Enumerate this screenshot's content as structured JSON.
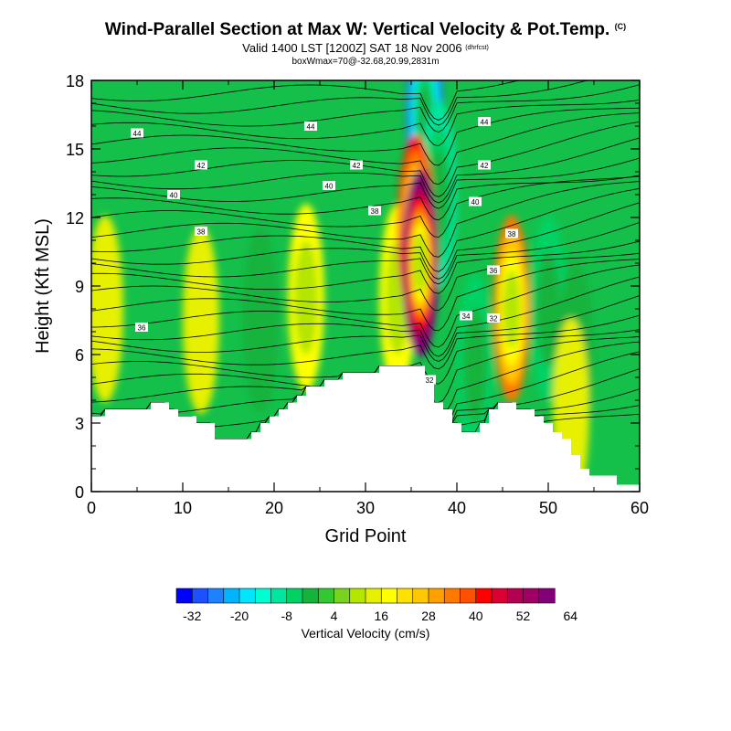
{
  "header": {
    "title": "Wind-Parallel Section at Max W: Vertical Velocity & Pot.Temp.",
    "title_sup": "(C)",
    "subtitle": "Valid 1400 LST [1200Z] SAT 18 Nov 2006",
    "subtitle_sup": "(dhrfcst)",
    "info": "boxWmax=70@-32.68,20.99,2831m"
  },
  "chart_data": {
    "type": "heatmap",
    "title": "Wind-Parallel Section at Max W: Vertical Velocity & Pot.Temp.",
    "xlabel": "Grid Point",
    "ylabel": "Height (Kft MSL)",
    "xlim": [
      0,
      60
    ],
    "ylim": [
      0,
      18
    ],
    "x_ticks": [
      "0",
      "10",
      "20",
      "30",
      "40",
      "50",
      "60"
    ],
    "y_ticks": [
      "0",
      "3",
      "6",
      "9",
      "12",
      "15",
      "18"
    ],
    "colorbar": {
      "label": "Vertical Velocity (cm/s)",
      "tick_labels": [
        "-32",
        "-20",
        "-8",
        "4",
        "16",
        "28",
        "40",
        "52",
        "64"
      ],
      "min": -36,
      "step": 4,
      "colors": [
        "#0000ff",
        "#1e50ff",
        "#1e82ff",
        "#00b4ff",
        "#00e6ff",
        "#00ffd0",
        "#00e6a0",
        "#00d264",
        "#14b43c",
        "#32c832",
        "#78d21e",
        "#b4e600",
        "#e6f000",
        "#ffff00",
        "#ffe100",
        "#ffc800",
        "#ffa000",
        "#ff7800",
        "#ff5000",
        "#ff0000",
        "#dc0032",
        "#b40050",
        "#a00064",
        "#820078"
      ]
    },
    "terrain_kft": [
      3.3,
      3.3,
      3.6,
      3.6,
      3.6,
      3.6,
      3.6,
      3.9,
      3.9,
      3.6,
      3.3,
      3.3,
      3.0,
      3.0,
      2.3,
      2.3,
      2.3,
      2.3,
      2.6,
      3.0,
      3.3,
      3.6,
      3.9,
      4.2,
      4.6,
      4.6,
      4.9,
      4.9,
      5.2,
      5.2,
      5.2,
      5.2,
      5.5,
      5.5,
      5.5,
      5.5,
      5.5,
      4.9,
      3.9,
      3.6,
      3.0,
      2.6,
      2.6,
      3.0,
      3.6,
      3.9,
      3.9,
      3.6,
      3.6,
      3.3,
      3.0,
      2.6,
      2.3,
      1.6,
      1.0,
      0.7,
      0.7,
      0.7,
      0.3,
      0.3,
      0.3
    ],
    "updraft_cores": [
      {
        "x": 36,
        "z": 10.0,
        "w": 64
      },
      {
        "x": 35.5,
        "z": 11.5,
        "w": 40
      },
      {
        "x": 46,
        "z": 8.0,
        "w": 32
      },
      {
        "x": 23.5,
        "z": 8.5,
        "w": 16
      },
      {
        "x": 33.5,
        "z": 8.5,
        "w": 16
      },
      {
        "x": 12,
        "z": 7.5,
        "w": 12
      },
      {
        "x": 1.5,
        "z": 8.0,
        "w": 12
      },
      {
        "x": 52.5,
        "z": 3.5,
        "w": 12
      }
    ],
    "downdraft_cores": [
      {
        "x": 36.5,
        "z": 16.5,
        "w": -32
      },
      {
        "x": 38,
        "z": 13,
        "w": -12
      },
      {
        "x": 50,
        "z": 8,
        "w": -8
      },
      {
        "x": 18.5,
        "z": 7.5,
        "w": -4
      },
      {
        "x": 42,
        "z": 5.5,
        "w": -8
      },
      {
        "x": 53,
        "z": 6,
        "w": -4
      }
    ],
    "theta_contour_labels": [
      {
        "text": "44",
        "x": 5,
        "z": 15.7
      },
      {
        "text": "44",
        "x": 24,
        "z": 16.0
      },
      {
        "text": "44",
        "x": 43,
        "z": 16.2
      },
      {
        "text": "42",
        "x": 12,
        "z": 14.3
      },
      {
        "text": "42",
        "x": 29,
        "z": 14.3
      },
      {
        "text": "42",
        "x": 43,
        "z": 14.3
      },
      {
        "text": "40",
        "x": 9,
        "z": 13.0
      },
      {
        "text": "40",
        "x": 26,
        "z": 13.4
      },
      {
        "text": "40",
        "x": 42,
        "z": 12.7
      },
      {
        "text": "38",
        "x": 12,
        "z": 11.4
      },
      {
        "text": "38",
        "x": 31,
        "z": 12.3
      },
      {
        "text": "38",
        "x": 46,
        "z": 11.3
      },
      {
        "text": "36",
        "x": 5.5,
        "z": 7.2
      },
      {
        "text": "36",
        "x": 44,
        "z": 9.7
      },
      {
        "text": "34",
        "x": 41,
        "z": 7.7
      },
      {
        "text": "32",
        "x": 44,
        "z": 7.6
      },
      {
        "text": "32",
        "x": 37,
        "z": 4.9
      }
    ]
  }
}
